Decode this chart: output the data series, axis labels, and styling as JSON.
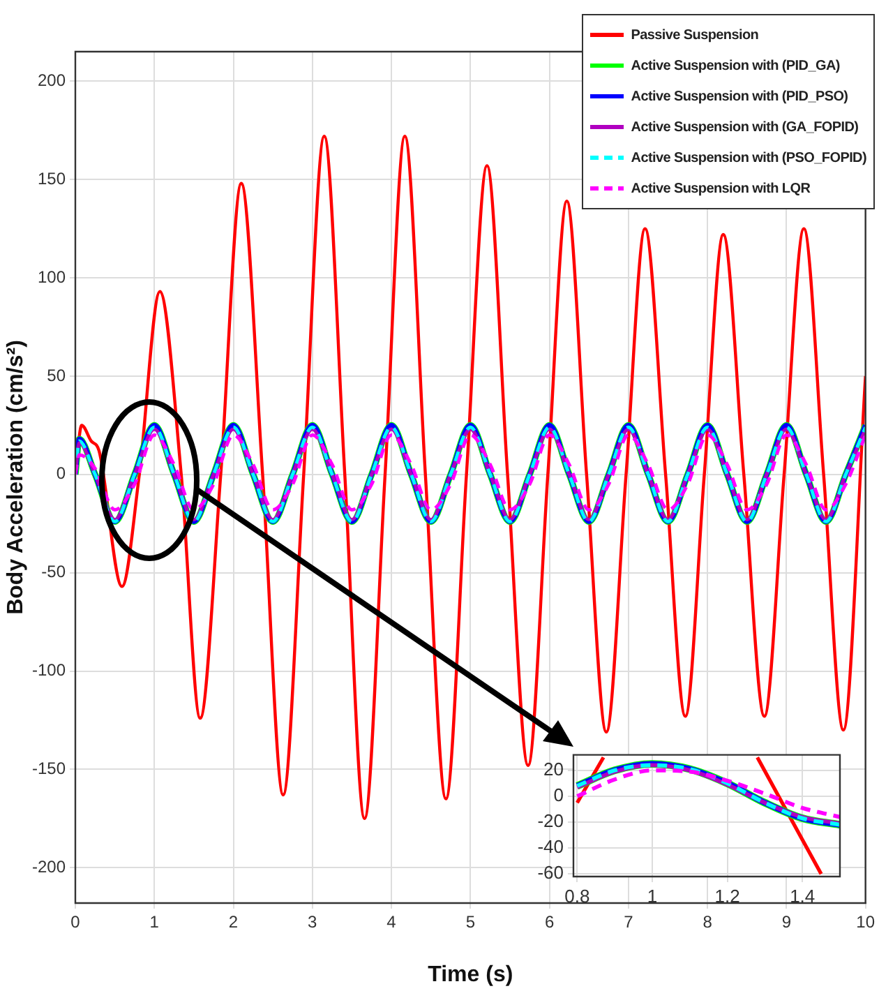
{
  "chart_data": [
    {
      "type": "line",
      "xlabel": "Time (s)",
      "ylabel": "Body Acceleration (cm/s²)",
      "xlim": [
        0,
        10
      ],
      "ylim": [
        -218,
        215
      ],
      "xticks": [
        0,
        1,
        2,
        3,
        4,
        5,
        6,
        7,
        8,
        9,
        10
      ],
      "yticks": [
        -200,
        -150,
        -100,
        -50,
        0,
        50,
        100,
        150,
        200
      ],
      "grid": true,
      "legend": "top right",
      "x": [
        0,
        0.05,
        0.25,
        0.5,
        0.75,
        1,
        1.25,
        1.5,
        1.75,
        2,
        2.25,
        2.5,
        2.75,
        3,
        3.25,
        3.5,
        3.75,
        4,
        4.25,
        4.5,
        4.75,
        5,
        5.25,
        5.5,
        5.75,
        6,
        6.25,
        6.5,
        6.75,
        7,
        7.25,
        7.5,
        7.75,
        8,
        8.25,
        8.5,
        8.75,
        9,
        9.25,
        9.5,
        9.75,
        10
      ],
      "series": [
        {
          "name": "Passive Suspension",
          "color": "#ff0000",
          "line_style": "solid",
          "x": [
            0,
            0.08,
            0.2,
            0.3,
            0.59,
            0.81,
            1.07,
            1.34,
            1.58,
            1.84,
            2.1,
            2.37,
            2.63,
            2.89,
            3.15,
            3.41,
            3.66,
            3.92,
            4.17,
            4.43,
            4.69,
            4.95,
            5.21,
            5.47,
            5.73,
            5.98,
            6.22,
            6.47,
            6.72,
            6.97,
            7.21,
            7.47,
            7.72,
            7.96,
            8.2,
            8.46,
            8.72,
            8.97,
            9.22,
            9.47,
            9.72,
            10
          ],
          "values": [
            0,
            25,
            17,
            12,
            -57,
            0,
            93,
            0,
            -124,
            0,
            148,
            0,
            -163,
            0,
            172,
            0,
            -175,
            0,
            172,
            0,
            -165,
            0,
            157,
            0,
            -148,
            0,
            139,
            0,
            -131,
            0,
            125,
            0,
            -123,
            0,
            122,
            0,
            -123,
            0,
            125,
            0,
            -130,
            50
          ]
        },
        {
          "name": "Active Suspension with (PID_GA)",
          "color": "#00ff00",
          "line_style": "solid",
          "values": [
            0,
            18,
            0,
            -24,
            0,
            25,
            0,
            -24,
            0,
            25,
            0,
            -24,
            0,
            25,
            0,
            -24,
            0,
            25,
            0,
            -24,
            0,
            25,
            0,
            -24,
            0,
            25,
            0,
            -24,
            0,
            25,
            0,
            -24,
            0,
            25,
            0,
            -24,
            0,
            25,
            0,
            -24,
            0,
            25
          ]
        },
        {
          "name": "Active Suspension with (PID_PSO)",
          "color": "#0000ff",
          "line_style": "solid",
          "values": [
            0,
            18,
            0,
            -24,
            0,
            25,
            0,
            -24,
            0,
            25,
            0,
            -24,
            0,
            25,
            0,
            -24,
            0,
            25,
            0,
            -24,
            0,
            25,
            0,
            -24,
            0,
            25,
            0,
            -24,
            0,
            25,
            0,
            -24,
            0,
            25,
            0,
            -24,
            0,
            25,
            0,
            -24,
            0,
            25
          ]
        },
        {
          "name": "Active Suspension with (GA_FOPID)",
          "color": "#b000c0",
          "line_style": "solid",
          "values": [
            0,
            16,
            0,
            -23,
            0,
            23,
            0,
            -23,
            0,
            23,
            0,
            -23,
            0,
            23,
            0,
            -23,
            0,
            23,
            0,
            -23,
            0,
            23,
            0,
            -23,
            0,
            23,
            0,
            -23,
            0,
            23,
            0,
            -23,
            0,
            23,
            0,
            -23,
            0,
            23,
            0,
            -23,
            0,
            23
          ]
        },
        {
          "name": "Active Suspension with (PSO_FOPID)",
          "color": "#00ffff",
          "line_style": "dashed",
          "values": [
            0,
            17,
            0,
            -24,
            0,
            24,
            0,
            -24,
            0,
            24,
            0,
            -24,
            0,
            24,
            0,
            -24,
            0,
            24,
            0,
            -24,
            0,
            24,
            0,
            -24,
            0,
            24,
            0,
            -24,
            0,
            24,
            0,
            -24,
            0,
            24,
            0,
            -24,
            0,
            24,
            0,
            -24,
            0,
            24
          ]
        },
        {
          "name": "Active Suspension with LQR",
          "color": "#ff00ff",
          "line_style": "dashed",
          "values": [
            0,
            10,
            3,
            -18,
            -5,
            20,
            5,
            -18,
            -5,
            20,
            5,
            -18,
            -5,
            20,
            5,
            -18,
            -5,
            20,
            5,
            -18,
            -5,
            20,
            5,
            -18,
            -5,
            20,
            5,
            -18,
            -5,
            20,
            5,
            -18,
            -5,
            20,
            5,
            -18,
            -5,
            20,
            5,
            -18,
            -5,
            20
          ]
        }
      ]
    },
    {
      "type": "line",
      "xlim": [
        0.79,
        1.5
      ],
      "ylim": [
        -62,
        32
      ],
      "xticks": [
        0.8,
        1,
        1.2,
        1.4
      ],
      "yticks": [
        -60,
        -40,
        -20,
        0,
        20
      ],
      "grid": true,
      "x": [
        0.8,
        0.9,
        1,
        1.1,
        1.2,
        1.3,
        1.4,
        1.5
      ],
      "series": [
        {
          "color": "#ff0000",
          "line_style": "solid",
          "x": [
            0.8,
            0.87,
            0.9,
            1.28,
            1.45
          ],
          "values": [
            -5,
            30,
            null,
            30,
            -60
          ]
        },
        {
          "color": "#00ff00",
          "line_style": "solid",
          "values": [
            8,
            20,
            25,
            21,
            10,
            -5,
            -17,
            -22
          ]
        },
        {
          "color": "#0000ff",
          "line_style": "solid",
          "values": [
            8,
            20,
            25,
            21,
            10,
            -5,
            -17,
            -22
          ]
        },
        {
          "color": "#b000c0",
          "line_style": "solid",
          "values": [
            7,
            19,
            24,
            20,
            9,
            -5,
            -16,
            -21
          ]
        },
        {
          "color": "#00ffff",
          "line_style": "dashed",
          "values": [
            8,
            20,
            24,
            21,
            10,
            -5,
            -17,
            -22
          ]
        },
        {
          "color": "#ff00ff",
          "line_style": "dashed",
          "values": [
            0,
            13,
            20,
            19,
            12,
            2,
            -9,
            -16
          ]
        }
      ]
    }
  ]
}
